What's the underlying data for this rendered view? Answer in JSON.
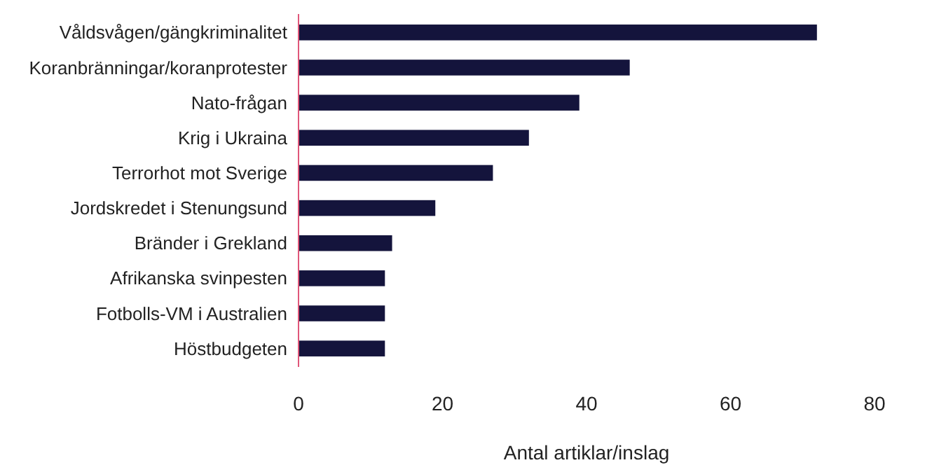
{
  "chart_data": {
    "type": "bar",
    "orientation": "horizontal",
    "xlabel": "Antal artiklar/inslag",
    "categories": [
      "Våldsvågen/gängkriminalitet",
      "Koranbränningar/koranprotester",
      "Nato-frågan",
      "Krig i Ukraina",
      "Terrorhot mot Sverige",
      "Jordskredet i Stenungsund",
      "Bränder i Grekland",
      "Afrikanska svinpesten",
      "Fotbolls-VM i Australien",
      "Höstbudgeten"
    ],
    "values": [
      72,
      46,
      39,
      32,
      27,
      19,
      13,
      12,
      12,
      12
    ],
    "color": "#14143c",
    "xlim": [
      0,
      80
    ],
    "xticks": [
      0,
      20,
      40,
      60,
      80
    ]
  }
}
